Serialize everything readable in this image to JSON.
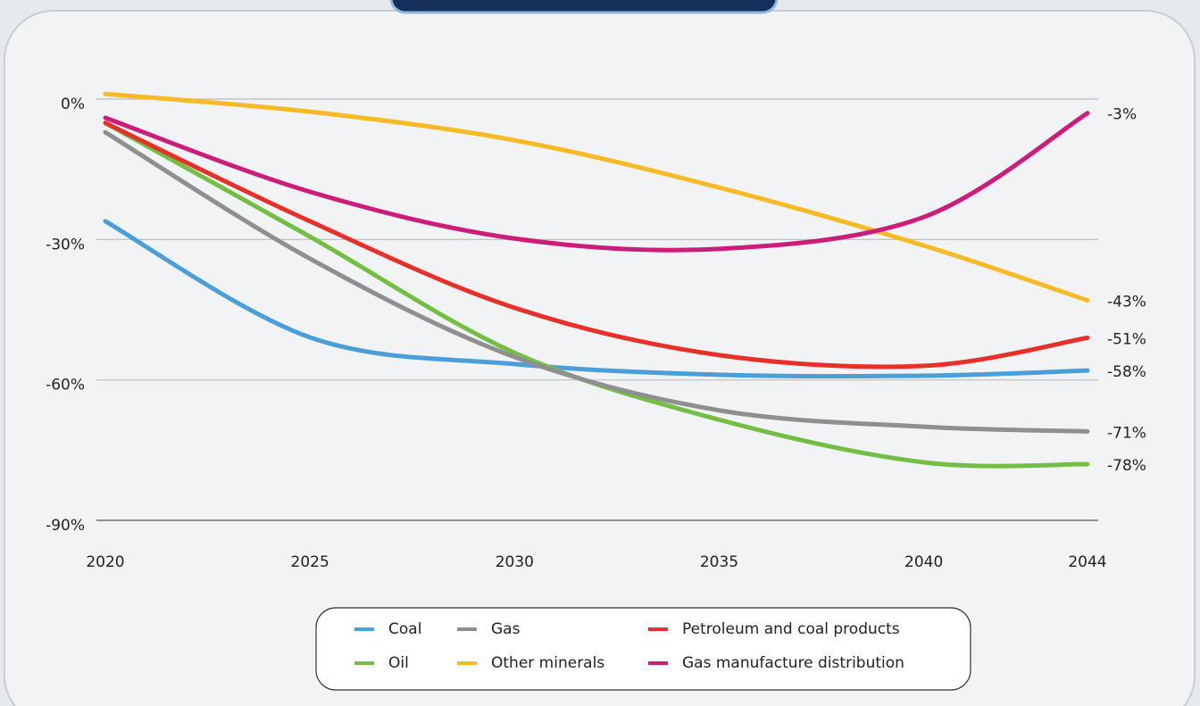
{
  "chart_data": {
    "type": "line",
    "x": [
      2020,
      2025,
      2030,
      2035,
      2040,
      2044
    ],
    "xlim": [
      2020,
      2044
    ],
    "xticks": [
      2020,
      2025,
      2030,
      2035,
      2040,
      2044
    ],
    "ylim": [
      -90,
      0
    ],
    "yticks": [
      {
        "value": 0,
        "label": "0%"
      },
      {
        "value": -30,
        "label": "-30%"
      },
      {
        "value": -60,
        "label": "-60%"
      },
      {
        "value": -90,
        "label": "-90%"
      }
    ],
    "grid": true,
    "legend": "bottom",
    "series": [
      {
        "name": "Coal",
        "color": "#4a9fd8",
        "values": [
          -26.1,
          -50.9,
          -56.6,
          -58.9,
          -59.1,
          -58
        ],
        "value_labels": [
          null,
          null,
          null,
          null,
          null,
          "-58%"
        ]
      },
      {
        "name": "Oil",
        "color": "#72bf44",
        "values": [
          -5.1,
          -29.4,
          -54.2,
          -68.5,
          -77.6,
          -78
        ],
        "value_labels": [
          null,
          null,
          null,
          null,
          null,
          "-78%"
        ]
      },
      {
        "name": "Gas",
        "color": "#8f8f8f",
        "values": [
          -7.1,
          -34.1,
          -55.1,
          -66.5,
          -70,
          -71
        ],
        "value_labels": [
          null,
          null,
          null,
          null,
          null,
          "-71%"
        ]
      },
      {
        "name": "Other minerals",
        "color": "#f7b924",
        "values": [
          1.1,
          -2.7,
          -8.8,
          -18.9,
          -31.3,
          -43
        ],
        "value_labels": [
          null,
          null,
          null,
          null,
          null,
          "-43%"
        ]
      },
      {
        "name": "Petroleum and coal products",
        "color": "#e8302a",
        "values": [
          -5.1,
          -26.1,
          -44.6,
          -54.7,
          -57,
          -51
        ],
        "value_labels": [
          null,
          null,
          null,
          null,
          null,
          "-51%"
        ]
      },
      {
        "name": "Gas manufacture distribution",
        "color": "#cc1d7a",
        "values": [
          -4,
          -19.8,
          -29.8,
          -32,
          -25.2,
          -3
        ],
        "value_labels": [
          null,
          null,
          null,
          null,
          null,
          "-3%"
        ]
      }
    ]
  }
}
